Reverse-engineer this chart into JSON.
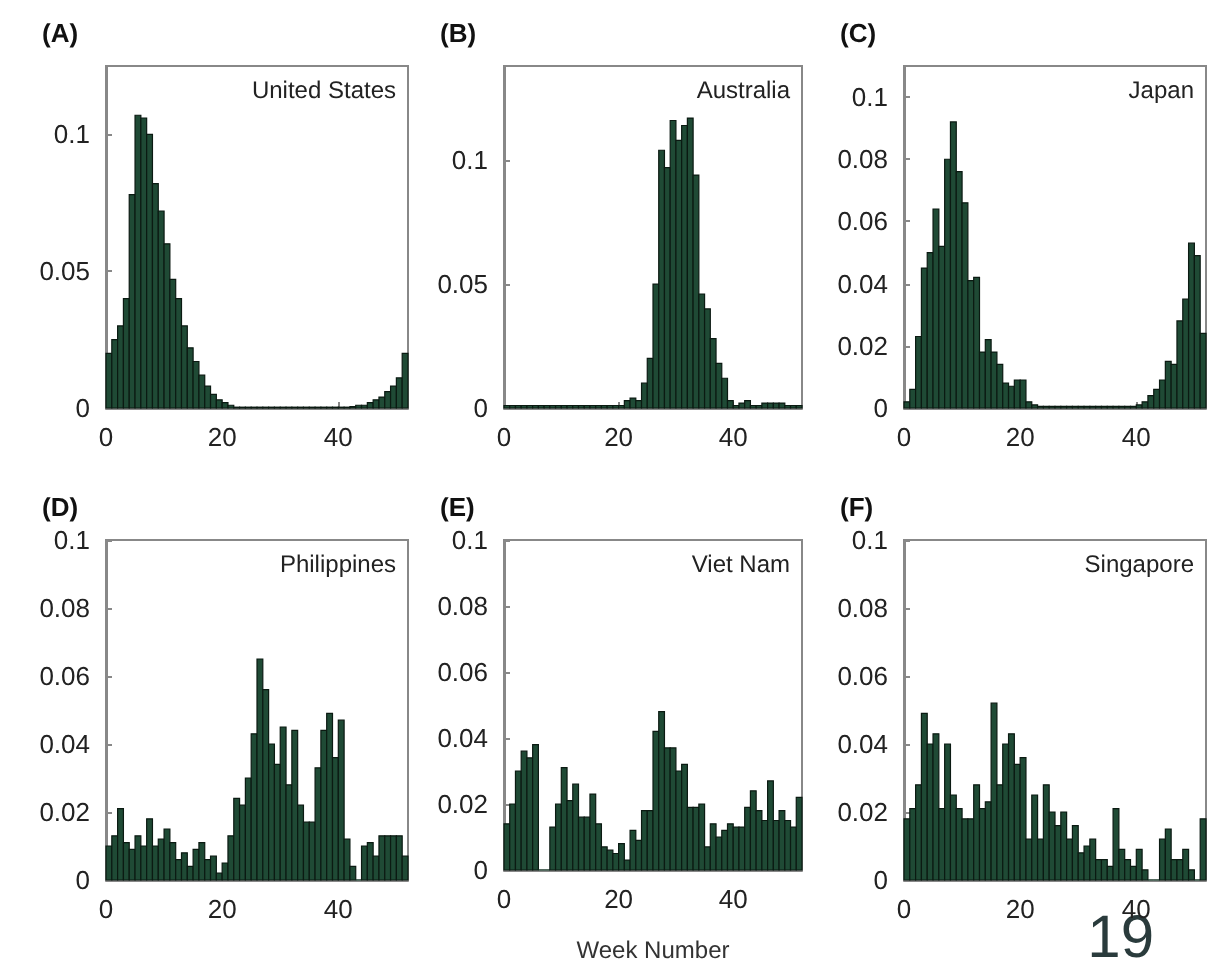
{
  "chart_data": [
    {
      "type": "histogram",
      "title": "(A)",
      "annotations": [
        "United States"
      ],
      "color": "#1f4a35",
      "grid": false,
      "bins": [
        0,
        1,
        2,
        3,
        4,
        5,
        6,
        7,
        8,
        9,
        10,
        11,
        12,
        13,
        14,
        15,
        16,
        17,
        18,
        19,
        20,
        21,
        22,
        23,
        24,
        25,
        26,
        27,
        28,
        29,
        30,
        31,
        32,
        33,
        34,
        35,
        36,
        37,
        38,
        39,
        40,
        41,
        42,
        43,
        44,
        45,
        46,
        47,
        48,
        49,
        50,
        51,
        52
      ],
      "values": [
        0.02,
        0.025,
        0.03,
        0.04,
        0.078,
        0.107,
        0.106,
        0.1,
        0.082,
        0.072,
        0.06,
        0.047,
        0.04,
        0.03,
        0.022,
        0.017,
        0.012,
        0.008,
        0.005,
        0.003,
        0.002,
        0.001,
        0.0003,
        0.0003,
        0.0003,
        0.0003,
        0.0003,
        0.0003,
        0.0003,
        0.0003,
        0.0003,
        0.0003,
        0.0003,
        0.0003,
        0.0003,
        0.0003,
        0.0003,
        0.0003,
        0.0003,
        0.0003,
        0.0003,
        0.0003,
        0.0005,
        0.001,
        0.001,
        0.002,
        0.003,
        0.004,
        0.006,
        0.008,
        0.011,
        0.02
      ],
      "xlim": [
        0,
        52
      ],
      "xticks": [
        0,
        20,
        40
      ],
      "ylim": [
        0,
        0.125
      ],
      "yticks": [
        0,
        0.05,
        0.1
      ]
    },
    {
      "type": "histogram",
      "title": "(B)",
      "annotations": [
        "Australia"
      ],
      "color": "#1f4a35",
      "grid": false,
      "bins": [
        0,
        1,
        2,
        3,
        4,
        5,
        6,
        7,
        8,
        9,
        10,
        11,
        12,
        13,
        14,
        15,
        16,
        17,
        18,
        19,
        20,
        21,
        22,
        23,
        24,
        25,
        26,
        27,
        28,
        29,
        30,
        31,
        32,
        33,
        34,
        35,
        36,
        37,
        38,
        39,
        40,
        41,
        42,
        43,
        44,
        45,
        46,
        47,
        48,
        49,
        50,
        51,
        52
      ],
      "values": [
        0.001,
        0.001,
        0.001,
        0.001,
        0.001,
        0.001,
        0.001,
        0.001,
        0.001,
        0.001,
        0.001,
        0.001,
        0.001,
        0.001,
        0.001,
        0.001,
        0.001,
        0.001,
        0.001,
        0.001,
        0.001,
        0.003,
        0.004,
        0.003,
        0.01,
        0.02,
        0.05,
        0.104,
        0.097,
        0.116,
        0.108,
        0.114,
        0.117,
        0.094,
        0.046,
        0.04,
        0.028,
        0.018,
        0.012,
        0.003,
        0.001,
        0.002,
        0.003,
        0.001,
        0.001,
        0.002,
        0.002,
        0.002,
        0.002,
        0.001,
        0.001,
        0.001
      ],
      "xlim": [
        0,
        52
      ],
      "xticks": [
        0,
        20,
        40
      ],
      "ylim": [
        0,
        0.138
      ],
      "yticks": [
        0,
        0.05,
        0.1
      ]
    },
    {
      "type": "histogram",
      "title": "(C)",
      "annotations": [
        "Japan"
      ],
      "color": "#1f4a35",
      "grid": false,
      "bins": [
        0,
        1,
        2,
        3,
        4,
        5,
        6,
        7,
        8,
        9,
        10,
        11,
        12,
        13,
        14,
        15,
        16,
        17,
        18,
        19,
        20,
        21,
        22,
        23,
        24,
        25,
        26,
        27,
        28,
        29,
        30,
        31,
        32,
        33,
        34,
        35,
        36,
        37,
        38,
        39,
        40,
        41,
        42,
        43,
        44,
        45,
        46,
        47,
        48,
        49,
        50,
        51,
        52
      ],
      "values": [
        0.002,
        0.006,
        0.023,
        0.045,
        0.05,
        0.064,
        0.052,
        0.08,
        0.092,
        0.076,
        0.066,
        0.041,
        0.042,
        0.018,
        0.022,
        0.018,
        0.014,
        0.008,
        0.007,
        0.009,
        0.009,
        0.002,
        0.001,
        0.0005,
        0.0005,
        0.0005,
        0.0005,
        0.0005,
        0.0005,
        0.0005,
        0.0005,
        0.0005,
        0.0005,
        0.0005,
        0.0005,
        0.0005,
        0.0005,
        0.0005,
        0.0005,
        0.0005,
        0.001,
        0.002,
        0.004,
        0.006,
        0.009,
        0.015,
        0.014,
        0.028,
        0.035,
        0.053,
        0.049,
        0.024
      ],
      "xlim": [
        0,
        52
      ],
      "xticks": [
        0,
        20,
        40
      ],
      "ylim": [
        0,
        0.11
      ],
      "yticks": [
        0,
        0.02,
        0.04,
        0.06,
        0.08,
        0.1
      ]
    },
    {
      "type": "histogram",
      "title": "(D)",
      "annotations": [
        "Philippines"
      ],
      "color": "#1f4a35",
      "grid": false,
      "bins": [
        0,
        1,
        2,
        3,
        4,
        5,
        6,
        7,
        8,
        9,
        10,
        11,
        12,
        13,
        14,
        15,
        16,
        17,
        18,
        19,
        20,
        21,
        22,
        23,
        24,
        25,
        26,
        27,
        28,
        29,
        30,
        31,
        32,
        33,
        34,
        35,
        36,
        37,
        38,
        39,
        40,
        41,
        42,
        43,
        44,
        45,
        46,
        47,
        48,
        49,
        50,
        51,
        52
      ],
      "values": [
        0.01,
        0.013,
        0.021,
        0.011,
        0.009,
        0.013,
        0.01,
        0.018,
        0.01,
        0.012,
        0.015,
        0.011,
        0.006,
        0.008,
        0.004,
        0.009,
        0.011,
        0.006,
        0.007,
        0.002,
        0.005,
        0.013,
        0.024,
        0.022,
        0.03,
        0.043,
        0.065,
        0.056,
        0.04,
        0.034,
        0.045,
        0.028,
        0.044,
        0.022,
        0.017,
        0.017,
        0.033,
        0.044,
        0.049,
        0.036,
        0.047,
        0.012,
        0.004,
        0,
        0.01,
        0.011,
        0.007,
        0.013,
        0.013,
        0.013,
        0.013,
        0.007
      ],
      "xlim": [
        0,
        52
      ],
      "xticks": [
        0,
        20,
        40
      ],
      "ylim": [
        0,
        0.1
      ],
      "yticks": [
        0,
        0.02,
        0.04,
        0.06,
        0.08,
        0.1
      ]
    },
    {
      "type": "histogram",
      "title": "(E)",
      "annotations": [
        "Viet Nam"
      ],
      "xlabel": "Week Number",
      "color": "#1f4a35",
      "grid": false,
      "bins": [
        0,
        1,
        2,
        3,
        4,
        5,
        6,
        7,
        8,
        9,
        10,
        11,
        12,
        13,
        14,
        15,
        16,
        17,
        18,
        19,
        20,
        21,
        22,
        23,
        24,
        25,
        26,
        27,
        28,
        29,
        30,
        31,
        32,
        33,
        34,
        35,
        36,
        37,
        38,
        39,
        40,
        41,
        42,
        43,
        44,
        45,
        46,
        47,
        48,
        49,
        50,
        51,
        52
      ],
      "values": [
        0.014,
        0.02,
        0.03,
        0.036,
        0.034,
        0.038,
        0,
        0,
        0.013,
        0.02,
        0.031,
        0.021,
        0.026,
        0.016,
        0.016,
        0.023,
        0.014,
        0.007,
        0.006,
        0.005,
        0.008,
        0.003,
        0.012,
        0.009,
        0.018,
        0.018,
        0.042,
        0.048,
        0.037,
        0.037,
        0.03,
        0.032,
        0.019,
        0.019,
        0.02,
        0.007,
        0.014,
        0.01,
        0.012,
        0.014,
        0.013,
        0.013,
        0.019,
        0.024,
        0.018,
        0.015,
        0.027,
        0.015,
        0.018,
        0.015,
        0.013,
        0.022
      ],
      "xlim": [
        0,
        52
      ],
      "xticks": [
        0,
        20,
        40
      ],
      "ylim": [
        0,
        0.1
      ],
      "yticks": [
        0,
        0.02,
        0.04,
        0.06,
        0.08,
        0.1
      ]
    },
    {
      "type": "histogram",
      "title": "(F)",
      "annotations": [
        "Singapore",
        "19"
      ],
      "color": "#1f4a35",
      "grid": false,
      "bins": [
        0,
        1,
        2,
        3,
        4,
        5,
        6,
        7,
        8,
        9,
        10,
        11,
        12,
        13,
        14,
        15,
        16,
        17,
        18,
        19,
        20,
        21,
        22,
        23,
        24,
        25,
        26,
        27,
        28,
        29,
        30,
        31,
        32,
        33,
        34,
        35,
        36,
        37,
        38,
        39,
        40,
        41,
        42,
        43,
        44,
        45,
        46,
        47,
        48,
        49,
        50,
        51,
        52
      ],
      "values": [
        0.018,
        0.021,
        0.028,
        0.049,
        0.04,
        0.043,
        0.021,
        0.04,
        0.025,
        0.021,
        0.018,
        0.018,
        0.028,
        0.021,
        0.023,
        0.052,
        0.028,
        0.04,
        0.043,
        0.034,
        0.036,
        0.012,
        0.025,
        0.012,
        0.028,
        0.02,
        0.016,
        0.02,
        0.012,
        0.016,
        0.008,
        0.01,
        0.012,
        0.006,
        0.006,
        0.004,
        0.021,
        0.009,
        0.006,
        0.004,
        0.009,
        0.003,
        0,
        0,
        0.012,
        0.015,
        0.006,
        0.006,
        0.009,
        0.003,
        0,
        0.018
      ],
      "xlim": [
        0,
        52
      ],
      "xticks": [
        0,
        20,
        40
      ],
      "ylim": [
        0,
        0.1
      ],
      "yticks": [
        0,
        0.02,
        0.04,
        0.06,
        0.08,
        0.1
      ]
    }
  ]
}
